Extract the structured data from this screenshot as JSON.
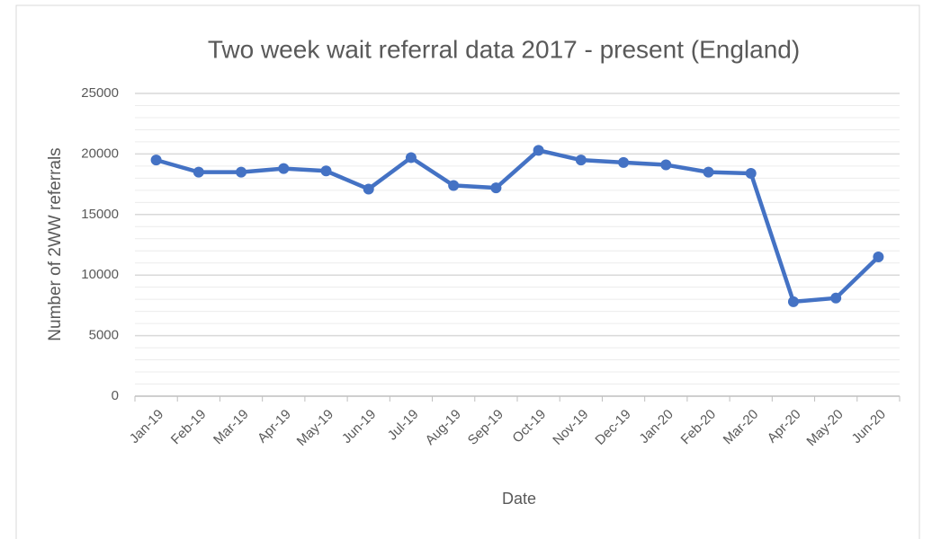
{
  "chart_data": {
    "type": "line",
    "title": "Two week wait referral data 2017 - present (England)",
    "x_label": "Date",
    "y_label": "Number of 2WW referrals",
    "categories": [
      "Jan-19",
      "Feb-19",
      "Mar-19",
      "Apr-19",
      "May-19",
      "Jun-19",
      "Jul-19",
      "Aug-19",
      "Sep-19",
      "Oct-19",
      "Nov-19",
      "Dec-19",
      "Jan-20",
      "Feb-20",
      "Mar-20",
      "Apr-20",
      "May-20",
      "Jun-20"
    ],
    "series": [
      {
        "name": "2WW referrals",
        "color": "#4472c4",
        "values": [
          19500,
          18500,
          18500,
          18800,
          18600,
          17100,
          19700,
          17400,
          17200,
          20300,
          19500,
          19300,
          19100,
          18500,
          18400,
          7800,
          8100,
          11500
        ]
      }
    ],
    "ylim": [
      0,
      25000
    ],
    "yticks": [
      0,
      5000,
      10000,
      15000,
      20000,
      25000
    ],
    "grid": true,
    "minor_grid": true
  }
}
